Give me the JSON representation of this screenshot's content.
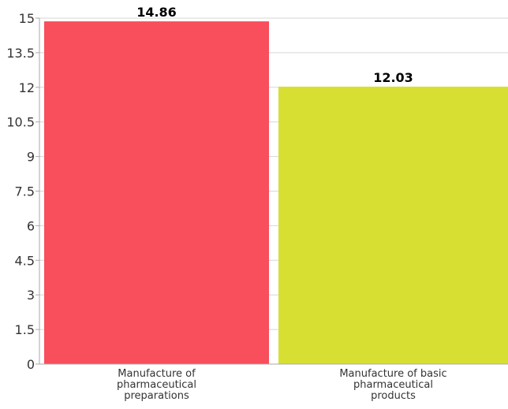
{
  "chart_data": {
    "type": "bar",
    "categories": [
      [
        "Manufacture of",
        "pharmaceutical",
        "preparations"
      ],
      [
        "Manufacture of basic",
        "pharmaceutical",
        "products"
      ]
    ],
    "values": [
      14.86,
      12.03
    ],
    "data_labels": [
      "14.86",
      "12.03"
    ],
    "colors": [
      "#f94e5b",
      "#d7df33"
    ],
    "ylim": [
      0,
      15
    ],
    "yticks": [
      0,
      1.5,
      3,
      4.5,
      6,
      7.5,
      9,
      10.5,
      12,
      13.5,
      15
    ],
    "ytick_labels": [
      "0",
      "1.5",
      "3",
      "4.5",
      "6",
      "7.5",
      "9",
      "10.5",
      "12",
      "13.5",
      "15"
    ],
    "grid": true,
    "legend": "none"
  }
}
